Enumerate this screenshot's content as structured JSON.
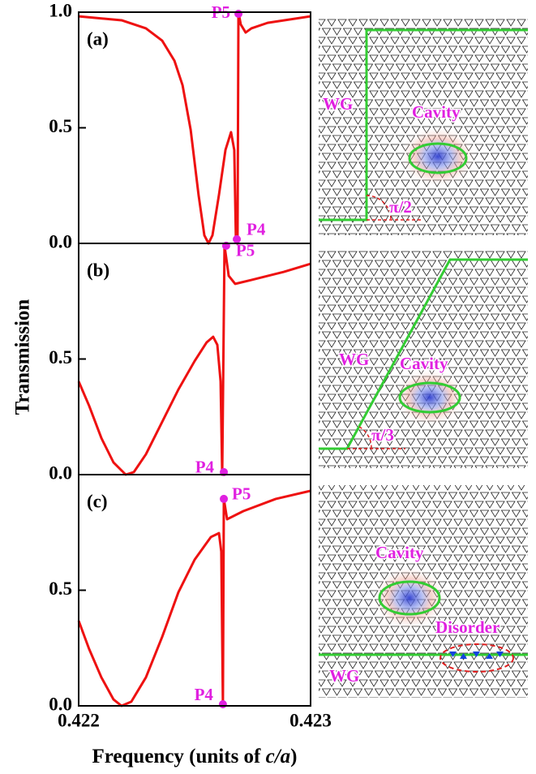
{
  "figure": {
    "ylabel": "Transmission",
    "xlabel": [
      "Frequency (units of ",
      "c/a",
      ")"
    ]
  },
  "chart_data": [
    {
      "type": "line",
      "panel_label": "(a)",
      "xlim": [
        0.422,
        0.423
      ],
      "ylim": [
        0,
        1
      ],
      "yticks": [
        {
          "value": 0,
          "label": "0.0"
        },
        {
          "value": 0.5,
          "label": "0.5"
        },
        {
          "value": 1,
          "label": "1.0"
        }
      ],
      "x": [
        0.422,
        0.422185,
        0.42229,
        0.42236,
        0.422413,
        0.422448,
        0.422483,
        0.422517,
        0.422542,
        0.42256,
        0.422577,
        0.422605,
        0.422633,
        0.422657,
        0.422671,
        0.422678,
        0.422685,
        0.422689,
        0.422699,
        0.42272,
        0.422745,
        0.422815,
        0.423
      ],
      "series": [
        {
          "color": "#ee1111",
          "values": [
            0.982,
            0.965,
            0.93,
            0.877,
            0.79,
            0.684,
            0.491,
            0.21,
            0.035,
            0.0,
            0.035,
            0.21,
            0.404,
            0.481,
            0.404,
            0.018,
            0.0,
            1.0,
            0.947,
            0.912,
            0.93,
            0.954,
            0.982
          ]
        }
      ],
      "markers": {
        "color": "#e020e0",
        "labels": [
          "P5",
          "P4"
        ],
        "x": [
          0.422689,
          0.422682
        ],
        "values": [
          0.993,
          0.018
        ]
      }
    },
    {
      "type": "line",
      "panel_label": "(b)",
      "xlim": [
        0.422,
        0.423
      ],
      "ylim": [
        0,
        1
      ],
      "yticks": [
        {
          "value": 0,
          "label": "0.0"
        },
        {
          "value": 0.5,
          "label": "0.5"
        }
      ],
      "x": [
        0.422,
        0.422045,
        0.422098,
        0.42215,
        0.422203,
        0.422238,
        0.42229,
        0.42236,
        0.42243,
        0.4225,
        0.422552,
        0.42258,
        0.422598,
        0.422612,
        0.422619,
        0.422629,
        0.422647,
        0.422675,
        0.422745,
        0.422885,
        0.423
      ],
      "series": [
        {
          "color": "#ee1111",
          "values": [
            0.403,
            0.298,
            0.158,
            0.053,
            0.0,
            0.011,
            0.088,
            0.228,
            0.368,
            0.491,
            0.572,
            0.596,
            0.561,
            0.403,
            0.0,
            0.99,
            0.86,
            0.825,
            0.842,
            0.877,
            0.912
          ]
        }
      ],
      "markers": {
        "color": "#e020e0",
        "labels": [
          "P5",
          "P4"
        ],
        "x": [
          0.422636,
          0.422626
        ],
        "values": [
          0.99,
          0.011
        ]
      }
    },
    {
      "type": "line",
      "panel_label": "(c)",
      "xlim": [
        0.422,
        0.423
      ],
      "ylim": [
        0,
        1
      ],
      "yticks": [
        {
          "value": 0,
          "label": "0.0"
        },
        {
          "value": 0.5,
          "label": "0.5"
        }
      ],
      "xticks": [
        0.422,
        0.423
      ],
      "x": [
        0.422,
        0.422045,
        0.422098,
        0.42215,
        0.422185,
        0.422227,
        0.42229,
        0.42236,
        0.42243,
        0.4225,
        0.42257,
        0.422605,
        0.422615,
        0.422622,
        0.422626,
        0.42264,
        0.42271,
        0.42285,
        0.423
      ],
      "series": [
        {
          "color": "#ee1111",
          "values": [
            0.368,
            0.246,
            0.123,
            0.028,
            0.0,
            0.018,
            0.123,
            0.298,
            0.491,
            0.632,
            0.73,
            0.747,
            0.667,
            0.007,
            0.895,
            0.807,
            0.842,
            0.895,
            0.93
          ]
        }
      ],
      "markers": {
        "color": "#e020e0",
        "labels": [
          "P5",
          "P4"
        ],
        "x": [
          0.422626,
          0.422622
        ],
        "values": [
          0.895,
          0.007
        ]
      }
    }
  ],
  "schematics": [
    {
      "wg": "WG",
      "cavity": "Cavity",
      "angle": "π/2"
    },
    {
      "wg": "WG",
      "cavity": "Cavity",
      "angle": "π/3"
    },
    {
      "cavity": "Cavity",
      "disorder": "Disorder",
      "wg": "WG"
    }
  ]
}
